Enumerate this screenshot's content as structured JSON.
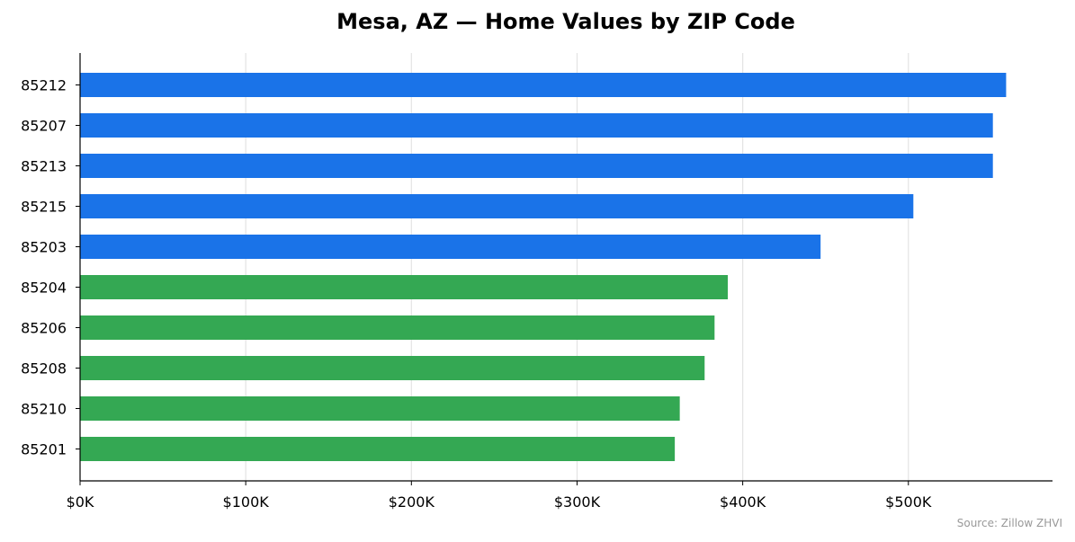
{
  "chart_data": {
    "type": "bar",
    "orientation": "horizontal",
    "title": "Mesa, AZ — Home Values by ZIP Code",
    "xlabel": "",
    "ylabel": "",
    "source": "Source: Zillow ZHVI",
    "categories": [
      "85212",
      "85207",
      "85213",
      "85215",
      "85203",
      "85204",
      "85206",
      "85208",
      "85210",
      "85201"
    ],
    "values": [
      559000,
      551000,
      551000,
      503000,
      447000,
      391000,
      383000,
      377000,
      362000,
      359000
    ],
    "bar_colors": [
      "#1a73e8",
      "#1a73e8",
      "#1a73e8",
      "#1a73e8",
      "#1a73e8",
      "#34a853",
      "#34a853",
      "#34a853",
      "#34a853",
      "#34a853"
    ],
    "xlim": [
      0,
      587000
    ],
    "x_ticks": [
      0,
      100000,
      200000,
      300000,
      400000,
      500000
    ],
    "x_tick_labels": [
      "$0K",
      "$100K",
      "$200K",
      "$300K",
      "$400K",
      "$500K"
    ],
    "grid": "vertical",
    "legend": "none"
  }
}
